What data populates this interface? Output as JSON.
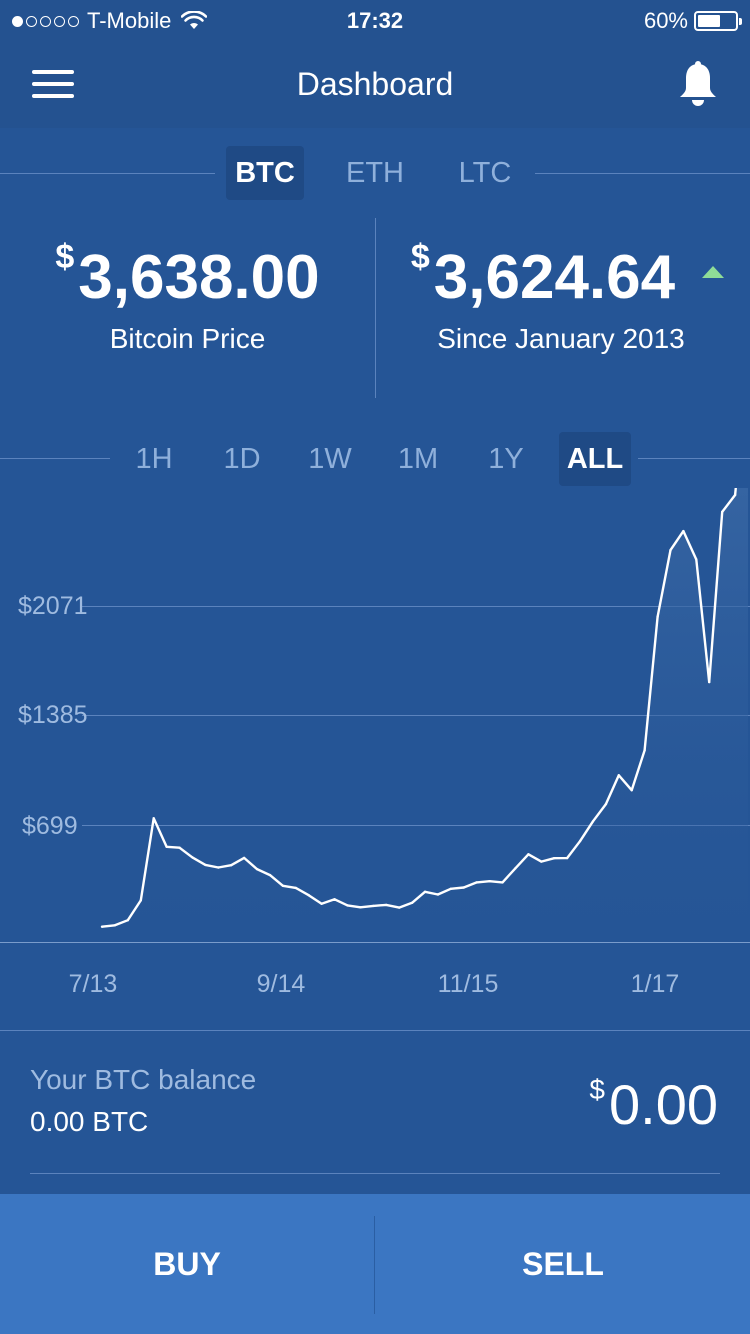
{
  "status_bar": {
    "carrier": "T-Mobile",
    "signal_bars": 1,
    "signal_total": 5,
    "wifi_icon": "wifi-icon",
    "time": "17:32",
    "battery_percent_text": "60%",
    "battery_level": 0.6
  },
  "nav": {
    "title": "Dashboard",
    "menu_icon": "hamburger-menu-icon",
    "bell_icon": "bell-icon"
  },
  "currency_tabs": [
    {
      "label": "BTC",
      "active": true
    },
    {
      "label": "ETH",
      "active": false
    },
    {
      "label": "LTC",
      "active": false
    }
  ],
  "stats": {
    "price": {
      "currency_symbol": "$",
      "value": "3,638.00",
      "label": "Bitcoin Price"
    },
    "change": {
      "currency_symbol": "$",
      "value": "3,624.64",
      "label": "Since January 2013",
      "trend_icon": "up-triangle-icon"
    }
  },
  "range_tabs": [
    {
      "label": "1H",
      "active": false
    },
    {
      "label": "1D",
      "active": false
    },
    {
      "label": "1W",
      "active": false
    },
    {
      "label": "1M",
      "active": false
    },
    {
      "label": "1Y",
      "active": false
    },
    {
      "label": "ALL",
      "active": true
    }
  ],
  "chart_data": {
    "type": "area",
    "x_ticks": [
      "7/13",
      "9/14",
      "11/15",
      "1/17"
    ],
    "y_ticks": [
      "$2071",
      "$1385",
      "$699"
    ],
    "y_tick_values": [
      2071,
      1385,
      699
    ],
    "series": [
      {
        "values": [
          96,
          105,
          137,
          261,
          777,
          598,
          592,
          531,
          484,
          468,
          482,
          528,
          458,
          420,
          353,
          340,
          294,
          240,
          268,
          230,
          218,
          227,
          233,
          216,
          246,
          315,
          298,
          334,
          342,
          374,
          382,
          374,
          463,
          551,
          505,
          526,
          527,
          633,
          758,
          866,
          1047,
          953,
          1203,
          2042,
          2461,
          2580,
          2402,
          1632,
          2701,
          2807,
          3638
        ]
      }
    ],
    "colors": {
      "line": "#ffffff",
      "fill_top": "#3f6da9",
      "fill_bottom": "#255596"
    }
  },
  "balance": {
    "label": "Your BTC balance",
    "btc": "0.00 BTC",
    "currency_symbol": "$",
    "usd": "0.00"
  },
  "actions": {
    "buy": "BUY",
    "sell": "SELL"
  },
  "colors": {
    "background": "#255596",
    "bar": "#245290",
    "action_bar": "#3b76c2",
    "positive": "#8fdc97"
  }
}
